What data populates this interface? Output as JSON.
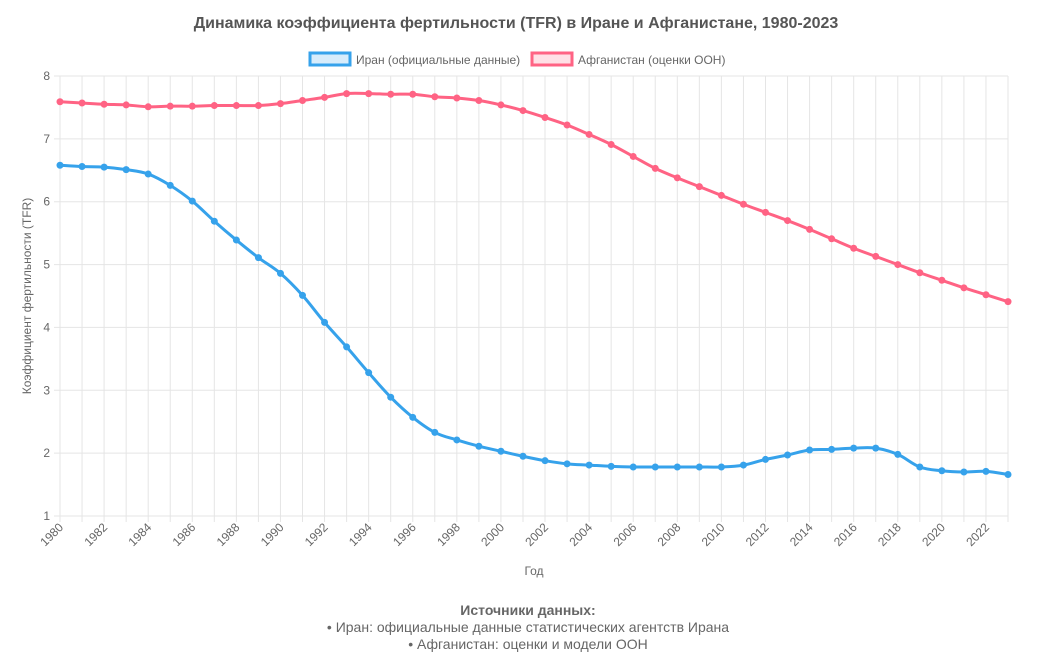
{
  "chart_data": {
    "type": "line",
    "title": "Динамика коэффициента фертильности (TFR) в Иране и Афганистане, 1980-2023",
    "xlabel": "Год",
    "ylabel": "Коэффициент фертильности (TFR)",
    "ylim": [
      1,
      8
    ],
    "yticks": [
      "1",
      "2",
      "3",
      "4",
      "5",
      "6",
      "7",
      "8"
    ],
    "xlim": [
      1980,
      2023
    ],
    "xticks": [
      "1980",
      "1982",
      "1984",
      "1986",
      "1988",
      "1990",
      "1992",
      "1994",
      "1996",
      "1998",
      "2000",
      "2002",
      "2004",
      "2006",
      "2008",
      "2010",
      "2012",
      "2014",
      "2016",
      "2018",
      "2020",
      "2022"
    ],
    "grid": true,
    "legend_position": "top-center",
    "x": [
      1980,
      1981,
      1982,
      1983,
      1984,
      1985,
      1986,
      1987,
      1988,
      1989,
      1990,
      1991,
      1992,
      1993,
      1994,
      1995,
      1996,
      1997,
      1998,
      1999,
      2000,
      2001,
      2002,
      2003,
      2004,
      2005,
      2006,
      2007,
      2008,
      2009,
      2010,
      2011,
      2012,
      2013,
      2014,
      2015,
      2016,
      2017,
      2018,
      2019,
      2020,
      2021,
      2022,
      2023
    ],
    "series": [
      {
        "name": "Иран (официальные данные)",
        "color": "#36a2eb",
        "values": [
          6.58,
          6.56,
          6.55,
          6.51,
          6.44,
          6.26,
          6.01,
          5.69,
          5.39,
          5.11,
          4.86,
          4.51,
          4.08,
          3.69,
          3.28,
          2.89,
          2.57,
          2.33,
          2.21,
          2.11,
          2.03,
          1.95,
          1.88,
          1.83,
          1.81,
          1.79,
          1.78,
          1.78,
          1.78,
          1.78,
          1.78,
          1.81,
          1.9,
          1.97,
          2.05,
          2.06,
          2.08,
          2.08,
          1.98,
          1.78,
          1.72,
          1.7,
          1.71,
          1.66
        ]
      },
      {
        "name": "Афганистан (оценки ООН)",
        "color": "#ff6384",
        "values": [
          7.59,
          7.57,
          7.55,
          7.54,
          7.51,
          7.52,
          7.52,
          7.53,
          7.53,
          7.53,
          7.56,
          7.61,
          7.66,
          7.72,
          7.72,
          7.71,
          7.71,
          7.67,
          7.65,
          7.61,
          7.54,
          7.45,
          7.34,
          7.22,
          7.07,
          6.91,
          6.72,
          6.53,
          6.38,
          6.24,
          6.1,
          5.96,
          5.83,
          5.7,
          5.56,
          5.41,
          5.26,
          5.13,
          5.0,
          4.87,
          4.75,
          4.63,
          4.52,
          4.41
        ]
      }
    ]
  },
  "sources": {
    "title": "Источники данных:",
    "lines": [
      "• Иран: официальные данные статистических агентств Ирана",
      "• Афганистан: оценки и модели ООН"
    ]
  }
}
